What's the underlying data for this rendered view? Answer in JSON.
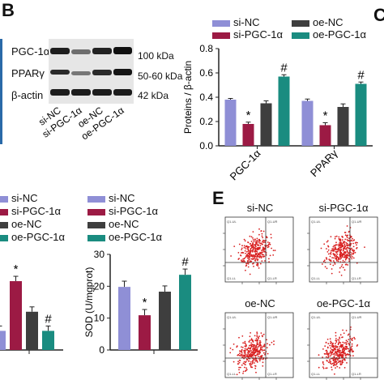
{
  "panels": {
    "B": "B",
    "C": "C",
    "E": "E"
  },
  "colors": {
    "si-NC": "#8f8fd6",
    "si-PGC-1α": "#9c1a44",
    "oe-NC": "#3e3e3e",
    "oe-PGC-1α": "#1a8c80"
  },
  "blot": {
    "rows": [
      {
        "protein": "PGC-1α",
        "kda": "100 kDa"
      },
      {
        "protein": "PPARγ",
        "kda": "50-60 kDa"
      },
      {
        "protein": "β-actin",
        "kda": "42 kDa"
      }
    ],
    "lanes": [
      "si-NC",
      "si-PGC-1α",
      "oe-NC",
      "oe-PGC-1α"
    ]
  },
  "legend_top": [
    "si-NC",
    "si-PGC-1α",
    "oe-NC",
    "oe-PGC-1α"
  ],
  "legend_left": [
    "si-NC",
    "si-PGC-1α",
    "oe-NC",
    "oe-PGC-1α"
  ],
  "legend_sod": [
    "si-NC",
    "si-PGC-1α",
    "oe-NC",
    "oe-PGC-1α"
  ],
  "flow": {
    "titles": [
      "si-NC",
      "si-PGC-1α",
      "oe-NC",
      "oe-PGC-1α"
    ],
    "quad_labels": [
      "Q1-UL",
      "Q1-UR",
      "Q1-LL",
      "Q1-LR"
    ]
  },
  "chart_data": [
    {
      "type": "bar",
      "ylabel": "Proteins / β-actin",
      "categories": [
        "PGC-1α",
        "PPARγ"
      ],
      "ylim": [
        0.0,
        0.8
      ],
      "yticks": [
        0.0,
        0.2,
        0.4,
        0.6,
        0.8
      ],
      "series": [
        {
          "name": "si-NC",
          "values": [
            0.38,
            0.37
          ],
          "errors": [
            0.01,
            0.015
          ]
        },
        {
          "name": "si-PGC-1α",
          "values": [
            0.18,
            0.17
          ],
          "errors": [
            0.015,
            0.02
          ]
        },
        {
          "name": "oe-NC",
          "values": [
            0.35,
            0.32
          ],
          "errors": [
            0.02,
            0.025
          ]
        },
        {
          "name": "oe-PGC-1α",
          "values": [
            0.57,
            0.51
          ],
          "errors": [
            0.015,
            0.015
          ]
        }
      ],
      "annotations": [
        {
          "category": "PGC-1α",
          "series": "si-PGC-1α",
          "text": "*"
        },
        {
          "category": "PGC-1α",
          "series": "oe-PGC-1α",
          "text": "#"
        },
        {
          "category": "PPARγ",
          "series": "si-PGC-1α",
          "text": "*"
        },
        {
          "category": "PPARγ",
          "series": "oe-PGC-1α",
          "text": "#"
        }
      ]
    },
    {
      "type": "bar",
      "ylabel": "SOD (U/mgprot)",
      "categories": [
        ""
      ],
      "ylim": [
        0,
        30
      ],
      "yticks": [
        0,
        10,
        20,
        30
      ],
      "series": [
        {
          "name": "si-NC",
          "values": [
            19.8
          ],
          "errors": [
            1.8
          ]
        },
        {
          "name": "si-PGC-1α",
          "values": [
            10.9
          ],
          "errors": [
            1.8
          ]
        },
        {
          "name": "oe-NC",
          "values": [
            18.3
          ],
          "errors": [
            1.8
          ]
        },
        {
          "name": "oe-PGC-1α",
          "values": [
            23.6
          ],
          "errors": [
            1.8
          ]
        }
      ],
      "annotations": [
        {
          "category": "",
          "series": "si-PGC-1α",
          "text": "*"
        },
        {
          "category": "",
          "series": "oe-PGC-1α",
          "text": "#"
        }
      ]
    },
    {
      "type": "bar",
      "ylabel": "",
      "categories": [
        ""
      ],
      "ylim": [
        0,
        1
      ],
      "series": [
        {
          "name": "si-NC",
          "values": [
            0.2
          ]
        },
        {
          "name": "si-PGC-1α",
          "values": [
            0.72
          ]
        },
        {
          "name": "oe-NC",
          "values": [
            0.4
          ]
        },
        {
          "name": "oe-PGC-1α",
          "values": [
            0.2
          ]
        }
      ],
      "annotations": [
        {
          "category": "",
          "series": "si-PGC-1α",
          "text": "*"
        },
        {
          "category": "",
          "series": "oe-PGC-1α",
          "text": "#"
        }
      ]
    }
  ]
}
